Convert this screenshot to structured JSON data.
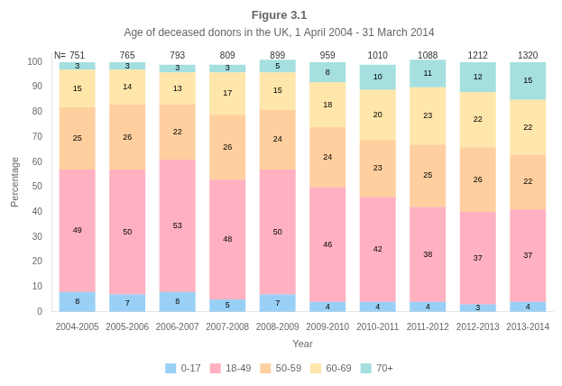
{
  "chart_data": {
    "type": "bar",
    "title": "Figure 3.1",
    "subtitle": "Age of deceased donors in the UK, 1 April 2004 - 31 March 2014",
    "xlabel": "Year",
    "ylabel": "Percentage",
    "categories": [
      "2004-2005",
      "2005-2006",
      "2006-2007",
      "2007-2008",
      "2008-2009",
      "2009-2010",
      "2010-2011",
      "2011-2012",
      "2012-2013",
      "2013-2014"
    ],
    "series": [
      {
        "name": "0-17",
        "values": [
          8,
          7,
          8,
          5,
          7,
          4,
          4,
          4,
          3,
          4
        ]
      },
      {
        "name": "18-49",
        "values": [
          49,
          50,
          53,
          48,
          50,
          46,
          42,
          38,
          37,
          37
        ]
      },
      {
        "name": "50-59",
        "values": [
          25,
          26,
          22,
          26,
          24,
          24,
          23,
          25,
          26,
          22
        ]
      },
      {
        "name": "60-69",
        "values": [
          15,
          14,
          13,
          17,
          15,
          18,
          20,
          23,
          22,
          22
        ]
      },
      {
        "name": "70+",
        "values": [
          3,
          3,
          3,
          3,
          5,
          8,
          10,
          11,
          12,
          15
        ]
      }
    ],
    "stacked": true,
    "data_labels": true,
    "ylim": [
      0,
      104
    ],
    "yticks": [
      0,
      10,
      20,
      30,
      40,
      50,
      60,
      70,
      80,
      90,
      100
    ],
    "grid": false,
    "legend": "bottom",
    "annotations": [
      {
        "text": "N="
      },
      {
        "x": "2004-2005",
        "text": "751"
      },
      {
        "x": "2005-2006",
        "text": "765"
      },
      {
        "x": "2006-2007",
        "text": "793"
      },
      {
        "x": "2007-2008",
        "text": "809"
      },
      {
        "x": "2008-2009",
        "text": "899"
      },
      {
        "x": "2009-2010",
        "text": "959"
      },
      {
        "x": "2010-2011",
        "text": "1010"
      },
      {
        "x": "2011-2012",
        "text": "1088"
      },
      {
        "x": "2012-2013",
        "text": "1212"
      },
      {
        "x": "2013-2014",
        "text": "1320"
      }
    ]
  }
}
